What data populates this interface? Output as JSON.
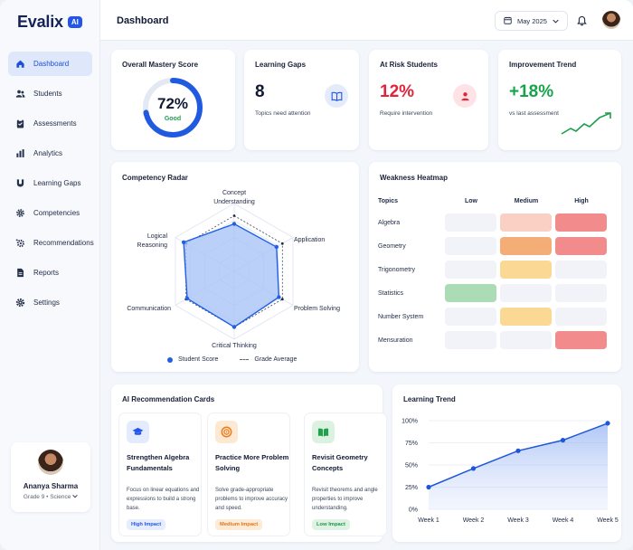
{
  "brand": {
    "name": "Evalix",
    "badge": "AI"
  },
  "nav": [
    {
      "label": "Dashboard",
      "icon": "home-icon",
      "active": true
    },
    {
      "label": "Students",
      "icon": "users-icon"
    },
    {
      "label": "Assessments",
      "icon": "clipboard-icon"
    },
    {
      "label": "Analytics",
      "icon": "bar-chart-icon"
    },
    {
      "label": "Learning Gaps",
      "icon": "magnet-icon"
    },
    {
      "label": "Competencies",
      "icon": "gear-icon"
    },
    {
      "label": "Recommendations",
      "icon": "sparkle-gear-icon"
    },
    {
      "label": "Reports",
      "icon": "document-icon"
    },
    {
      "label": "Settings",
      "icon": "settings-icon"
    }
  ],
  "profile": {
    "name": "Ananya Sharma",
    "subtitle": "Grade 9 • Science"
  },
  "header": {
    "title": "Dashboard",
    "date": "May 2025"
  },
  "kpis": {
    "mastery": {
      "title": "Overall Mastery Score",
      "value": "72%",
      "label": "Good",
      "progress": 0.72
    },
    "gaps": {
      "title": "Learning Gaps",
      "value": "8",
      "sub": "Topics need attention"
    },
    "risk": {
      "title": "At Risk Students",
      "value": "12%",
      "sub": "Require intervention"
    },
    "trend": {
      "title": "Improvement Trend",
      "value": "+18%",
      "sub": "vs last assessment"
    }
  },
  "radar": {
    "title": "Competency Radar",
    "axes": [
      "Concept Understanding",
      "Application",
      "Problem Solving",
      "Critical Thinking",
      "Communication",
      "Logical Reasoning"
    ],
    "student_score": [
      0.7,
      0.72,
      0.76,
      0.82,
      0.8,
      0.86
    ],
    "grade_average": [
      0.82,
      0.82,
      0.82,
      0.82,
      0.82,
      0.82
    ],
    "legend_student": "Student Score",
    "legend_average": "Grade Average",
    "colors": {
      "student": "#2160e6",
      "fill": "#a9c4f7"
    }
  },
  "heatmap": {
    "title": "Weakness Heatmap",
    "header": "Topics",
    "columns": [
      "Low",
      "Medium",
      "High"
    ],
    "rows": [
      {
        "topic": "Algebra",
        "levels": [
          "none",
          "light-red",
          "red"
        ]
      },
      {
        "topic": "Geometry",
        "levels": [
          "none",
          "orange",
          "red"
        ]
      },
      {
        "topic": "Trigonometry",
        "levels": [
          "none",
          "yellow",
          "none"
        ]
      },
      {
        "topic": "Statistics",
        "levels": [
          "green",
          "none",
          "none"
        ]
      },
      {
        "topic": "Number System",
        "levels": [
          "none",
          "yellow",
          "none"
        ]
      },
      {
        "topic": "Mensuration",
        "levels": [
          "none",
          "none",
          "red"
        ]
      }
    ],
    "colors": {
      "none": "#f1f3f8",
      "light-red": "#fbd0c4",
      "red": "#f28b8b",
      "orange": "#f5ad78",
      "yellow": "#fbd894",
      "green": "#abdcb5"
    }
  },
  "recommendations": {
    "title": "AI Recommendation Cards",
    "cards": [
      {
        "title": "Strengthen Algebra Fundamentals",
        "desc": "Focus on linear equations and expressions to build a strong base.",
        "badge": "High Impact",
        "icon": "graduation-cap-icon",
        "tone": "blue"
      },
      {
        "title": "Practice More Problem Solving",
        "desc": "Solve grade-appropriate problems to improve accuracy and speed.",
        "badge": "Medium Impact",
        "icon": "target-icon",
        "tone": "orange"
      },
      {
        "title": "Revisit Geometry Concepts",
        "desc": "Revisit theorems and angle properties to improve understanding.",
        "badge": "Low Impact",
        "icon": "book-icon",
        "tone": "green"
      }
    ]
  },
  "chart_data": {
    "type": "area",
    "title": "Learning Trend",
    "categories": [
      "Week 1",
      "Week 2",
      "Week 3",
      "Week 4",
      "Week 5"
    ],
    "values": [
      25,
      46,
      66,
      78,
      97
    ],
    "y_ticks": [
      "0%",
      "25%",
      "50%",
      "75%",
      "100%"
    ],
    "ylim": [
      0,
      100
    ],
    "grid": true,
    "color": "#1d56d8"
  }
}
